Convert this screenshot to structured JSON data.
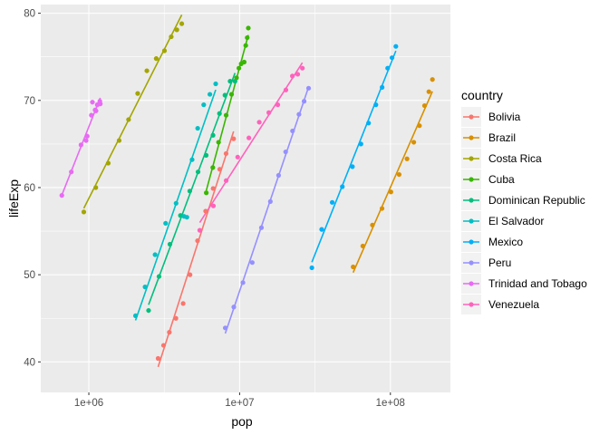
{
  "chart_data": {
    "type": "scatter",
    "xlabel": "pop",
    "ylabel": "lifeExp",
    "x_scale": "log10",
    "xlim": [
      480000,
      250000000
    ],
    "ylim": [
      36.5,
      81
    ],
    "x_ticks": [
      1000000,
      10000000,
      100000000
    ],
    "x_tick_labels": [
      "1e+06",
      "1e+07",
      "1e+08"
    ],
    "y_ticks": [
      40,
      50,
      60,
      70,
      80
    ],
    "y_tick_labels": [
      "40",
      "50",
      "60",
      "70",
      "80"
    ],
    "grid": true,
    "legend_title": "country",
    "legend_position": "right",
    "series": [
      {
        "name": "Bolivia",
        "color": "#F8766D",
        "x": [
          2880000,
          3130000,
          3420000,
          3780000,
          4220000,
          4690000,
          5260000,
          5950000,
          6670000,
          7380000,
          8130000,
          9120000
        ],
        "y": [
          40.4,
          41.9,
          43.4,
          45.0,
          46.7,
          50.0,
          53.9,
          57.3,
          59.9,
          62.1,
          63.9,
          65.6
        ]
      },
      {
        "name": "Brazil",
        "color": "#D89000",
        "x": [
          56600000,
          65600000,
          76000000,
          88000000,
          100800000,
          114300000,
          128900000,
          142900000,
          155900000,
          168500000,
          179900000,
          190000000
        ],
        "y": [
          50.9,
          53.3,
          55.7,
          57.6,
          59.5,
          61.5,
          63.3,
          65.2,
          67.1,
          69.4,
          71.0,
          72.4
        ]
      },
      {
        "name": "Costa Rica",
        "color": "#A3A500",
        "x": [
          926000,
          1112000,
          1345000,
          1588000,
          1834000,
          2108000,
          2425000,
          2799000,
          3173000,
          3519000,
          3835000,
          4133000
        ],
        "y": [
          57.2,
          60.0,
          62.8,
          65.4,
          67.8,
          70.8,
          73.4,
          74.8,
          75.7,
          77.3,
          78.1,
          78.8
        ]
      },
      {
        "name": "Cuba",
        "color": "#39B600",
        "x": [
          6010000,
          6640000,
          7250000,
          8140000,
          8840000,
          9540000,
          9890000,
          10240000,
          10720000,
          10980000,
          11230000,
          11420000
        ],
        "y": [
          59.4,
          62.3,
          65.2,
          68.3,
          70.7,
          72.6,
          73.7,
          74.2,
          74.4,
          76.3,
          77.2,
          78.3
        ]
      },
      {
        "name": "Dominican Republic",
        "color": "#00BF7D",
        "x": [
          2490000,
          2920000,
          3450000,
          4050000,
          4670000,
          5300000,
          6000000,
          6660000,
          7350000,
          7990000,
          8650000,
          9320000
        ],
        "y": [
          45.9,
          49.8,
          53.5,
          56.8,
          59.6,
          61.8,
          63.7,
          66.0,
          68.5,
          70.6,
          72.2,
          72.2
        ]
      },
      {
        "name": "El Salvador",
        "color": "#00BFC4",
        "x": [
          2040000,
          2360000,
          2750000,
          3230000,
          3790000,
          4280000,
          4470000,
          4840000,
          5270000,
          5780000,
          6350000,
          6940000
        ],
        "y": [
          45.3,
          48.6,
          52.3,
          55.9,
          58.2,
          56.7,
          56.6,
          63.2,
          66.8,
          69.5,
          70.7,
          71.9
        ]
      },
      {
        "name": "Mexico",
        "color": "#00B0F6",
        "x": [
          30140000,
          35020000,
          41120000,
          47990000,
          55980000,
          63760000,
          71640000,
          80120000,
          88110000,
          95900000,
          102500000,
          108700000
        ],
        "y": [
          50.8,
          55.2,
          58.3,
          60.1,
          62.4,
          65.0,
          67.4,
          69.5,
          71.5,
          73.7,
          74.9,
          76.2
        ]
      },
      {
        "name": "Peru",
        "color": "#9590FF",
        "x": [
          8030000,
          9150000,
          10520000,
          12130000,
          13950000,
          15990000,
          18130000,
          20200000,
          22430000,
          24750000,
          26770000,
          28670000
        ],
        "y": [
          43.9,
          46.3,
          49.1,
          51.4,
          55.4,
          58.4,
          61.4,
          64.1,
          66.5,
          68.4,
          69.9,
          71.4
        ]
      },
      {
        "name": "Trinidad and Tobago",
        "color": "#E76BF3",
        "x": [
          662000,
          765000,
          887000,
          960000,
          975000,
          1039000,
          1116000,
          1191000,
          1183000,
          1138000,
          1101000,
          1056000
        ],
        "y": [
          59.1,
          61.8,
          64.9,
          65.4,
          65.9,
          68.3,
          68.8,
          69.6,
          69.9,
          69.5,
          68.9,
          69.8
        ]
      },
      {
        "name": "Venezuela",
        "color": "#FF62BC",
        "x": [
          5440000,
          6700000,
          8140000,
          9710000,
          11520000,
          13500000,
          15620000,
          17910000,
          20270000,
          22380000,
          24290000,
          26080000
        ],
        "y": [
          55.1,
          57.9,
          60.8,
          63.5,
          65.7,
          67.5,
          68.6,
          69.5,
          71.2,
          72.8,
          73.0,
          73.7
        ]
      }
    ]
  }
}
